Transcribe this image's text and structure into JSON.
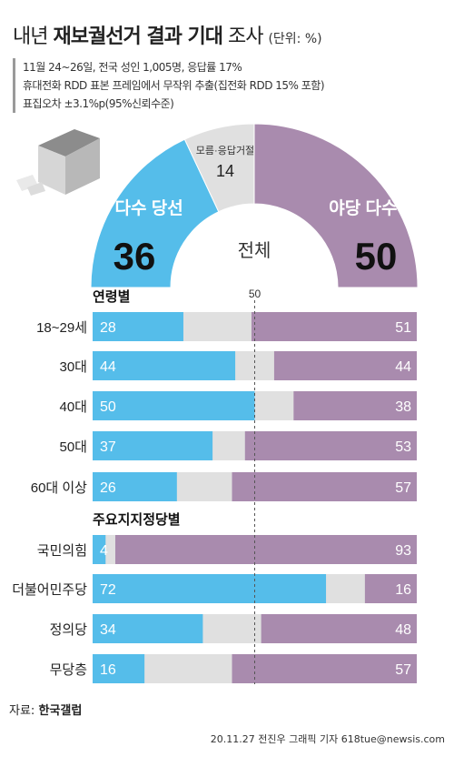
{
  "header": {
    "title_part1": "내년 ",
    "title_part2": "재보궐선거 결과 기대",
    "title_part3": " 조사",
    "unit": "(단위: %)"
  },
  "methodology": [
    "11월 24~26일, 전국 성인 1,005명, 응답률 17%",
    "휴대전화 RDD 표본 프레임에서 무작위 추출(집전화 RDD 15% 포함)",
    "표집오차 ±3.1%p(95%신뢰수준)"
  ],
  "footer": {
    "source_label": "자료:",
    "source_name": "한국갤럽",
    "credit": "20.11.27 전진우 그래픽 기자 618tue@newsis.com"
  },
  "colors": {
    "ruling": "#55bdea",
    "opposition": "#a98bae",
    "undecided": "#e0e0e0",
    "divider": "#555555"
  },
  "chart_data": {
    "type": "bar",
    "overall": {
      "center_label": "전체",
      "ruling_label": "여당 다수 당선",
      "opposition_label": "야당 다수 당선",
      "undecided_label": "모름·응답거절",
      "ruling": 36,
      "opposition": 50,
      "undecided": 14
    },
    "reference_line": 50,
    "groups": [
      {
        "title": "연령별",
        "categories": [
          "18~29세",
          "30대",
          "40대",
          "50대",
          "60대 이상"
        ],
        "ruling": [
          28,
          44,
          50,
          37,
          26
        ],
        "opposition": [
          51,
          44,
          38,
          53,
          57
        ]
      },
      {
        "title": "주요지지정당별",
        "categories": [
          "국민의힘",
          "더불어민주당",
          "정의당",
          "무당층"
        ],
        "ruling": [
          4,
          72,
          34,
          16
        ],
        "opposition": [
          93,
          16,
          48,
          57
        ]
      }
    ]
  }
}
